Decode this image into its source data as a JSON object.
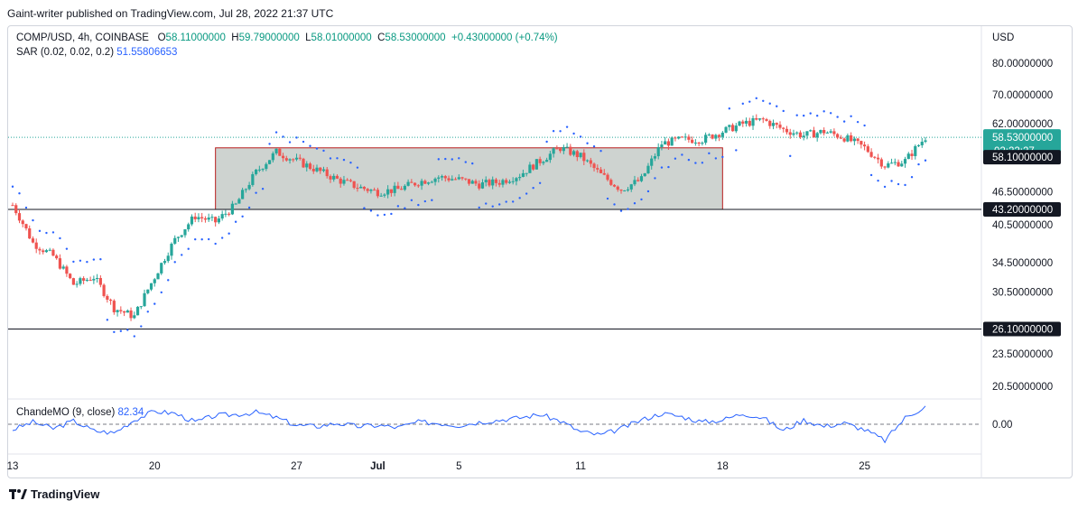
{
  "header": {
    "published": "Gaint-writer published on TradingView.com, Jul 28, 2022 21:37 UTC"
  },
  "legend": {
    "symbol": "COMP/USD, 4h, COINBASE",
    "open_label": "O",
    "open": "58.11000000",
    "high_label": "H",
    "high": "59.79000000",
    "low_label": "L",
    "low": "58.01000000",
    "close_label": "C",
    "close": "58.53000000",
    "change": "+0.43000000 (+0.74%)",
    "sar_label": "SAR (0.02, 0.02, 0.2)",
    "sar_value": "51.55806653"
  },
  "indicator": {
    "label": "ChandeMO (9, close)",
    "value": "82.34",
    "zero_label": "0.00"
  },
  "footer": {
    "brand": "TradingView"
  },
  "colors": {
    "up": "#26a69a",
    "down": "#ef5350",
    "sar": "#2962ff",
    "cmo": "#2962ff",
    "box_fill": "#c5cbc8",
    "box_stroke": "#b71c1c",
    "current_price_bg": "#26a69a",
    "level_bg": "#131722"
  },
  "chart_data": {
    "type": "candlestick",
    "symbol": "COMP/USD",
    "timeframe": "4h",
    "exchange": "COINBASE",
    "y_axis": {
      "unit": "USD",
      "ticks": [
        20.5,
        23.5,
        26.1,
        30.5,
        34.5,
        40.5,
        43.2,
        46.5,
        58.1,
        58.53,
        62.0,
        70.0,
        80.0
      ],
      "tick_labels": [
        "20.50000000",
        "23.50000000",
        "26.10000000",
        "30.50000000",
        "34.50000000",
        "40.50000000",
        "43.20000000",
        "46.50000000",
        "58.10000000",
        "58.53000000",
        "62.00000000",
        "70.00000000",
        "80.00000000"
      ],
      "scale": "log"
    },
    "x_axis": {
      "tick_labels": [
        "13",
        "20",
        "27",
        "Jul",
        "5",
        "11",
        "18",
        "25"
      ]
    },
    "current_price": {
      "value": 58.53,
      "label": "58.53000000",
      "countdown": "02:22:27"
    },
    "levels": [
      {
        "value": 58.1,
        "label": "58.10000000"
      },
      {
        "value": 43.2,
        "label": "43.20000000"
      },
      {
        "value": 26.1,
        "label": "26.10000000"
      }
    ],
    "range_box": {
      "start_date": "Jun 23",
      "end_date": "Jul 18",
      "top": 56.0,
      "bottom": 43.2
    },
    "price_path": [
      [
        "Jun 13",
        44
      ],
      [
        "Jun 14",
        37.5
      ],
      [
        "Jun 15",
        35.5
      ],
      [
        "Jun 16",
        31.5
      ],
      [
        "Jun 17",
        32.5
      ],
      [
        "Jun 18",
        28.5
      ],
      [
        "Jun 19",
        27.5
      ],
      [
        "Jun 20",
        32.5
      ],
      [
        "Jun 21",
        38
      ],
      [
        "Jun 22",
        42
      ],
      [
        "Jun 23",
        41
      ],
      [
        "Jun 24",
        44
      ],
      [
        "Jun 25",
        50.5
      ],
      [
        "Jun 26",
        55
      ],
      [
        "Jun 27",
        53
      ],
      [
        "Jun 28",
        51
      ],
      [
        "Jun 29",
        49
      ],
      [
        "Jun 30",
        47.5
      ],
      [
        "Jul 1",
        46.5
      ],
      [
        "Jul 2",
        47
      ],
      [
        "Jul 3",
        48.5
      ],
      [
        "Jul 4",
        49.5
      ],
      [
        "Jul 5",
        49
      ],
      [
        "Jul 6",
        48
      ],
      [
        "Jul 7",
        48.5
      ],
      [
        "Jul 8",
        50
      ],
      [
        "Jul 9",
        53
      ],
      [
        "Jul 10",
        56
      ],
      [
        "Jul 11",
        54
      ],
      [
        "Jul 12",
        50
      ],
      [
        "Jul 13",
        47
      ],
      [
        "Jul 14",
        49
      ],
      [
        "Jul 15",
        57
      ],
      [
        "Jul 16",
        58
      ],
      [
        "Jul 17",
        58
      ],
      [
        "Jul 18",
        60
      ],
      [
        "Jul 19",
        62
      ],
      [
        "Jul 20",
        63
      ],
      [
        "Jul 21",
        60.5
      ],
      [
        "Jul 22",
        59
      ],
      [
        "Jul 23",
        60
      ],
      [
        "Jul 24",
        58.5
      ],
      [
        "Jul 25",
        56
      ],
      [
        "Jul 26",
        52
      ],
      [
        "Jul 27",
        53
      ],
      [
        "Jul 28",
        58.53
      ]
    ]
  },
  "cmo_data": {
    "label": "ChandeMO (9, close)",
    "points": [
      [
        "Jun 13",
        -25
      ],
      [
        "Jun 14",
        10
      ],
      [
        "Jun 15",
        -20
      ],
      [
        "Jun 16",
        15
      ],
      [
        "Jun 17",
        -30
      ],
      [
        "Jun 18",
        -40
      ],
      [
        "Jun 19",
        20
      ],
      [
        "Jun 20",
        60
      ],
      [
        "Jun 21",
        50
      ],
      [
        "Jun 22",
        10
      ],
      [
        "Jun 23",
        40
      ],
      [
        "Jun 24",
        45
      ],
      [
        "Jun 25",
        55
      ],
      [
        "Jun 26",
        30
      ],
      [
        "Jun 27",
        -5
      ],
      [
        "Jun 28",
        -10
      ],
      [
        "Jun 29",
        5
      ],
      [
        "Jun 30",
        -10
      ],
      [
        "Jul 1",
        -5
      ],
      [
        "Jul 2",
        -15
      ],
      [
        "Jul 3",
        10
      ],
      [
        "Jul 4",
        5
      ],
      [
        "Jul 5",
        -5
      ],
      [
        "Jul 6",
        10
      ],
      [
        "Jul 7",
        20
      ],
      [
        "Jul 8",
        30
      ],
      [
        "Jul 9",
        45
      ],
      [
        "Jul 10",
        15
      ],
      [
        "Jul 11",
        -35
      ],
      [
        "Jul 12",
        -50
      ],
      [
        "Jul 13",
        -20
      ],
      [
        "Jul 14",
        20
      ],
      [
        "Jul 15",
        50
      ],
      [
        "Jul 16",
        35
      ],
      [
        "Jul 17",
        10
      ],
      [
        "Jul 18",
        20
      ],
      [
        "Jul 19",
        50
      ],
      [
        "Jul 20",
        30
      ],
      [
        "Jul 21",
        -30
      ],
      [
        "Jul 22",
        20
      ],
      [
        "Jul 23",
        -10
      ],
      [
        "Jul 24",
        5
      ],
      [
        "Jul 25",
        -25
      ],
      [
        "Jul 26",
        -75
      ],
      [
        "Jul 27",
        30
      ],
      [
        "Jul 28",
        82.34
      ]
    ]
  }
}
